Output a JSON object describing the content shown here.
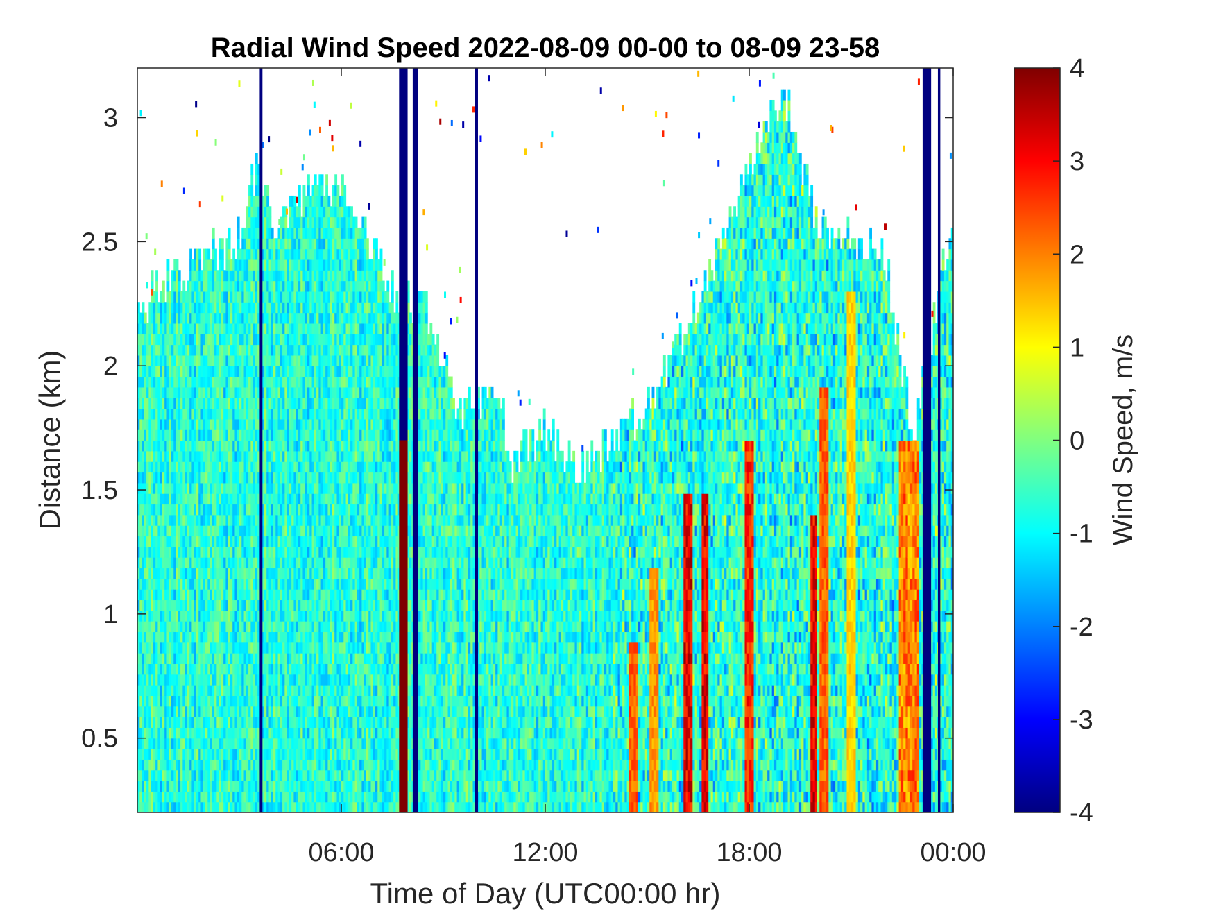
{
  "chart_data": {
    "type": "heatmap",
    "title": "Radial Wind Speed 2022-08-09 00-00 to 08-09 23-58",
    "xlabel": "Time of Day (UTC00:00 hr)",
    "ylabel": "Distance (km)",
    "colorbar_label": "Wind Speed, m/s",
    "x_unit": "hours",
    "xlim": [
      0,
      24
    ],
    "ylim": [
      0.2,
      3.2
    ],
    "clim": [
      -4,
      4
    ],
    "colormap": "jet",
    "x_ticks": [
      {
        "value": 6,
        "label": "06:00"
      },
      {
        "value": 12,
        "label": "12:00"
      },
      {
        "value": 18,
        "label": "18:00"
      },
      {
        "value": 24,
        "label": "00:00"
      }
    ],
    "y_ticks": [
      {
        "value": 0.5,
        "label": "0.5"
      },
      {
        "value": 1,
        "label": "1"
      },
      {
        "value": 1.5,
        "label": "1.5"
      },
      {
        "value": 2,
        "label": "2"
      },
      {
        "value": 2.5,
        "label": "2.5"
      },
      {
        "value": 3,
        "label": "3"
      }
    ],
    "c_ticks": [
      {
        "value": 4,
        "label": "4"
      },
      {
        "value": 3,
        "label": "3"
      },
      {
        "value": 2,
        "label": "2"
      },
      {
        "value": 1,
        "label": "1"
      },
      {
        "value": 0,
        "label": "0"
      },
      {
        "value": -1,
        "label": "-1"
      },
      {
        "value": -2,
        "label": "-2"
      },
      {
        "value": -3,
        "label": "-3"
      },
      {
        "value": -4,
        "label": "-4"
      }
    ],
    "data_top_km_by_hour": [
      {
        "hour": 0,
        "top_km": 2.25
      },
      {
        "hour": 1,
        "top_km": 2.35
      },
      {
        "hour": 2,
        "top_km": 2.45
      },
      {
        "hour": 3,
        "top_km": 2.5
      },
      {
        "hour": 3.5,
        "top_km": 2.8
      },
      {
        "hour": 4,
        "top_km": 2.55
      },
      {
        "hour": 5,
        "top_km": 2.7
      },
      {
        "hour": 6,
        "top_km": 2.75
      },
      {
        "hour": 7,
        "top_km": 2.45
      },
      {
        "hour": 7.7,
        "top_km": 2.25
      },
      {
        "hour": 8.6,
        "top_km": 2.2
      },
      {
        "hour": 9.5,
        "top_km": 1.8
      },
      {
        "hour": 10.5,
        "top_km": 1.95
      },
      {
        "hour": 11,
        "top_km": 1.6
      },
      {
        "hour": 12,
        "top_km": 1.75
      },
      {
        "hour": 13,
        "top_km": 1.55
      },
      {
        "hour": 14,
        "top_km": 1.7
      },
      {
        "hour": 15,
        "top_km": 1.85
      },
      {
        "hour": 16,
        "top_km": 2.1
      },
      {
        "hour": 17,
        "top_km": 2.45
      },
      {
        "hour": 18,
        "top_km": 2.8
      },
      {
        "hour": 19,
        "top_km": 3.1
      },
      {
        "hour": 20,
        "top_km": 2.6
      },
      {
        "hour": 21,
        "top_km": 2.5
      },
      {
        "hour": 22,
        "top_km": 2.45
      },
      {
        "hour": 22.8,
        "top_km": 1.7
      },
      {
        "hour": 24,
        "top_km": 2.6
      }
    ],
    "features": [
      {
        "type": "column",
        "x_start": 3.6,
        "x_end": 3.68,
        "value": -4,
        "note": "thin dark-blue vertical line"
      },
      {
        "type": "column",
        "x_start": 7.7,
        "x_end": 7.95,
        "value": -4,
        "y_from": 1.7,
        "y_to": 3.2
      },
      {
        "type": "column",
        "x_start": 7.7,
        "x_end": 7.95,
        "value": 4,
        "y_from": 0.2,
        "y_to": 1.7
      },
      {
        "type": "column",
        "x_start": 8.1,
        "x_end": 8.25,
        "value": -4
      },
      {
        "type": "column",
        "x_start": 9.92,
        "x_end": 10.02,
        "value": -4
      },
      {
        "type": "column",
        "x_start": 23.1,
        "x_end": 23.35,
        "value": -4
      },
      {
        "type": "column",
        "x_start": 23.55,
        "x_end": 23.62,
        "value": -4
      }
    ],
    "warm_bands_hours": [
      {
        "x": 14.6,
        "y_top": 0.9,
        "value": 2.5
      },
      {
        "x": 15.2,
        "y_top": 1.2,
        "value": 2
      },
      {
        "x": 16.2,
        "y_top": 1.5,
        "value": 3.5
      },
      {
        "x": 16.7,
        "y_top": 1.5,
        "value": 3.5
      },
      {
        "x": 18.0,
        "y_top": 1.7,
        "value": 3
      },
      {
        "x": 19.9,
        "y_top": 1.4,
        "value": 3.5
      },
      {
        "x": 20.2,
        "y_top": 1.9,
        "value": 2.5
      },
      {
        "x": 21.0,
        "y_top": 2.3,
        "value": 1.5
      },
      {
        "x": 22.65,
        "y_top": 1.6,
        "value": 3
      }
    ]
  }
}
